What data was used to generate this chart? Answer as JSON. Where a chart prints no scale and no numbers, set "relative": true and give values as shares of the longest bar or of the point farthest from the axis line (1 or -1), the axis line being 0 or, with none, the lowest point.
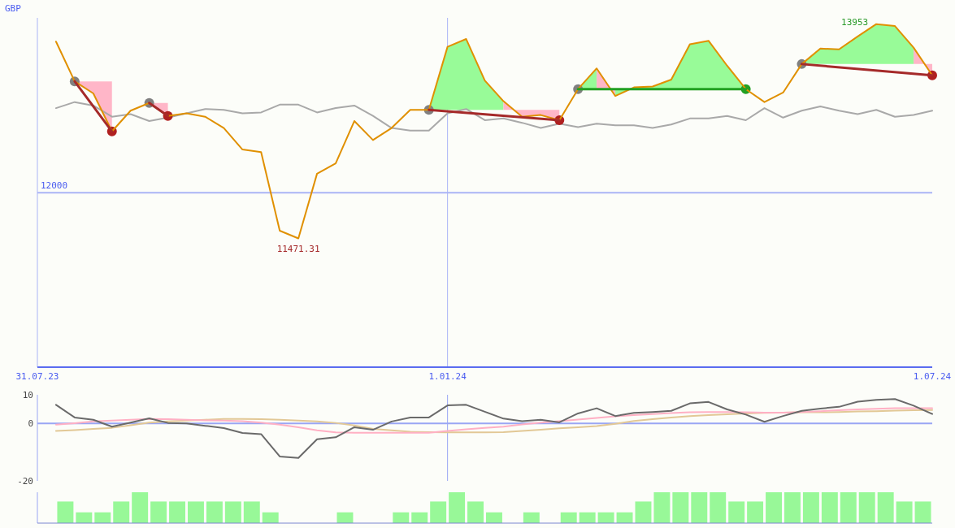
{
  "chart_data": [
    {
      "type": "line",
      "ylabel": "GBP",
      "x": [
        "2023-08-07",
        "2023-08-14",
        "2023-08-21",
        "2023-08-28",
        "2023-09-04",
        "2023-09-11",
        "2023-09-18",
        "2023-09-25",
        "2023-10-02",
        "2023-10-09",
        "2023-10-16",
        "2023-10-23",
        "2023-10-30",
        "2023-11-06",
        "2023-11-13",
        "2023-11-20",
        "2023-11-27",
        "2023-12-04",
        "2023-12-11",
        "2023-12-18",
        "2023-12-25",
        "2024-01-01",
        "2024-01-08",
        "2024-01-15",
        "2024-01-22",
        "2024-01-29",
        "2024-02-05",
        "2024-02-12",
        "2024-02-19",
        "2024-02-26",
        "2024-03-04",
        "2024-03-11",
        "2024-03-18",
        "2024-03-25",
        "2024-04-01",
        "2024-04-08",
        "2024-04-15",
        "2024-04-22",
        "2024-04-29",
        "2024-05-06",
        "2024-05-13",
        "2024-05-20",
        "2024-05-27",
        "2024-06-03",
        "2024-06-10",
        "2024-06-17",
        "2024-06-24",
        "2024-07-01"
      ],
      "xlim": [
        "2023-07-31",
        "2024-07-01"
      ],
      "xticks": [
        {
          "value": "2023-07-31",
          "label": "31.07.23"
        },
        {
          "value": "2024-01-01",
          "label": "1.01.24"
        },
        {
          "value": "2024-07-01",
          "label": "1.07.24"
        }
      ],
      "ylim": [
        9980,
        14025
      ],
      "ref_lines": [
        {
          "axis": "y",
          "value": 12000,
          "label": "12000"
        },
        {
          "axis": "x",
          "value": "2024-01-01"
        }
      ],
      "series": [
        {
          "type": "area",
          "color": "#ffb6c8",
          "x": [
            "2023-08-14",
            "2023-08-21",
            "2023-08-28"
          ],
          "values": [
            null,
            null,
            null
          ],
          "lower": [
            13290,
            13290,
            13290
          ],
          "upper": [
            13290,
            13150,
            12710
          ]
        },
        {
          "type": "area",
          "color": "#ffb6c8",
          "x": [
            "2023-09-11",
            "2023-09-18"
          ],
          "values": [
            null,
            null
          ],
          "lower": [
            13040,
            13040
          ],
          "upper": [
            13040,
            12890
          ]
        },
        {
          "type": "area",
          "color": "#98fb98",
          "x": [
            "2023-12-25",
            "2024-01-01",
            "2024-01-08",
            "2024-01-15",
            "2024-01-22"
          ],
          "values": [
            null,
            null,
            null,
            null,
            null
          ],
          "lower": [
            12960,
            12960,
            12960,
            12960,
            12960
          ],
          "upper": [
            12960,
            13690,
            13780,
            13300,
            13060
          ]
        },
        {
          "type": "area",
          "color": "#ffb6c8",
          "x": [
            "2024-01-22",
            "2024-01-29",
            "2024-02-05",
            "2024-02-12"
          ],
          "values": [
            null,
            null,
            null,
            null
          ],
          "lower": [
            12960,
            12960,
            12960,
            12960
          ],
          "upper": [
            13060,
            12880,
            12900,
            12840
          ]
        },
        {
          "type": "area",
          "color": "#98fb98",
          "x": [
            "2024-02-19",
            "2024-02-26"
          ],
          "values": [
            null,
            null
          ],
          "lower": [
            13200,
            13200
          ],
          "upper": [
            13200,
            13440
          ]
        },
        {
          "type": "area",
          "color": "#ffb6c8",
          "x": [
            "2024-02-26",
            "2024-03-04"
          ],
          "values": [
            null,
            null
          ],
          "lower": [
            13200,
            13200
          ],
          "upper": [
            13440,
            13120
          ]
        },
        {
          "type": "area",
          "color": "#98fb98",
          "x": [
            "2024-03-04",
            "2024-03-11",
            "2024-03-18",
            "2024-03-25",
            "2024-04-01",
            "2024-04-08",
            "2024-04-15",
            "2024-04-22"
          ],
          "values": [
            null,
            null,
            null,
            null,
            null,
            null,
            null,
            null
          ],
          "lower": [
            13200,
            13200,
            13200,
            13200,
            13200,
            13200,
            13200,
            13200
          ],
          "upper": [
            13120,
            13220,
            13230,
            13310,
            13720,
            13760,
            13470,
            13200
          ]
        },
        {
          "type": "area",
          "color": "#98fb98",
          "x": [
            "2024-05-13",
            "2024-05-20",
            "2024-05-27",
            "2024-06-03",
            "2024-06-10",
            "2024-06-17",
            "2024-06-24"
          ],
          "values": [
            null,
            null,
            null,
            null,
            null,
            null,
            null
          ],
          "lower": [
            13490,
            13490,
            13490,
            13490,
            13490,
            13490,
            13490
          ],
          "upper": [
            13490,
            13670,
            13660,
            13810,
            13953,
            13930,
            13680
          ]
        },
        {
          "type": "area",
          "color": "#ffb6c8",
          "x": [
            "2024-06-24",
            "2024-07-01"
          ],
          "values": [
            null,
            null
          ],
          "lower": [
            13490,
            13490
          ],
          "upper": [
            13680,
            13360
          ]
        },
        {
          "color": "#a9a9a9",
          "values": [
            12980,
            13050,
            13010,
            12880,
            12910,
            12830,
            12870,
            12920,
            12970,
            12960,
            12920,
            12930,
            13020,
            13020,
            12930,
            12980,
            13010,
            12890,
            12750,
            12720,
            12720,
            12920,
            12970,
            12840,
            12860,
            12810,
            12750,
            12800,
            12760,
            12800,
            12780,
            12780,
            12750,
            12790,
            12860,
            12860,
            12890,
            12840,
            12980,
            12870,
            12950,
            13000,
            12950,
            12910,
            12960,
            12880,
            12900,
            12950
          ]
        },
        {
          "type": "scatter",
          "marker": "circle",
          "x": [
            "2023-08-14",
            "2023-08-28",
            "2023-09-11",
            "2023-09-18",
            "2023-12-25",
            "2024-02-12",
            "2024-02-19",
            "2024-04-22",
            "2024-05-13",
            "2024-07-01"
          ],
          "values": [
            13290,
            12710,
            13040,
            12890,
            12960,
            12840,
            13200,
            13200,
            13490,
            13360
          ],
          "colors": [
            "#808080",
            "#b02020",
            "#808080",
            "#b02020",
            "#808080",
            "#b02020",
            "#808080",
            "#22a022",
            "#808080",
            "#b02020"
          ]
        },
        {
          "color": "#e09000",
          "values": [
            13750,
            13290,
            13150,
            12710,
            12950,
            13040,
            12890,
            12920,
            12880,
            12750,
            12500,
            12470,
            11560,
            11471.31,
            12220,
            12340,
            12830,
            12610,
            12750,
            12960,
            12960,
            13690,
            13780,
            13300,
            13060,
            12880,
            12900,
            12840,
            13200,
            13440,
            13120,
            13220,
            13230,
            13310,
            13720,
            13760,
            13470,
            13200,
            13050,
            13160,
            13490,
            13670,
            13660,
            13810,
            13953,
            13930,
            13680,
            13360
          ],
          "value_labels": [
            null,
            null,
            null,
            null,
            null,
            null,
            null,
            null,
            null,
            null,
            null,
            null,
            null,
            "11471.31",
            null,
            null,
            null,
            null,
            null,
            null,
            null,
            null,
            null,
            null,
            null,
            null,
            null,
            null,
            null,
            null,
            null,
            null,
            null,
            null,
            null,
            null,
            null,
            null,
            null,
            null,
            null,
            null,
            null,
            null,
            "13953",
            null,
            null,
            null
          ]
        },
        {
          "color": "#a52a2a",
          "x": [
            "2023-08-14",
            "2023-08-28"
          ],
          "values": [
            13290,
            12710
          ]
        },
        {
          "color": "#a52a2a",
          "x": [
            "2023-09-11",
            "2023-09-18"
          ],
          "values": [
            13040,
            12890
          ]
        },
        {
          "color": "#a52a2a",
          "x": [
            "2023-12-25",
            "2024-02-12"
          ],
          "values": [
            12960,
            12840
          ]
        },
        {
          "color": "#22a022",
          "x": [
            "2024-02-19",
            "2024-04-22"
          ],
          "values": [
            13200,
            13200
          ]
        },
        {
          "color": "#a52a2a",
          "x": [
            "2024-05-13",
            "2024-07-01"
          ],
          "values": [
            13490,
            13360
          ]
        }
      ]
    },
    {
      "type": "line",
      "tick_labels": "y",
      "x": [
        "2023-08-07",
        "2023-08-14",
        "2023-08-21",
        "2023-08-28",
        "2023-09-04",
        "2023-09-11",
        "2023-09-18",
        "2023-09-25",
        "2023-10-02",
        "2023-10-09",
        "2023-10-16",
        "2023-10-23",
        "2023-10-30",
        "2023-11-06",
        "2023-11-13",
        "2023-11-20",
        "2023-11-27",
        "2023-12-04",
        "2023-12-11",
        "2023-12-18",
        "2023-12-25",
        "2024-01-01",
        "2024-01-08",
        "2024-01-15",
        "2024-01-22",
        "2024-01-29",
        "2024-02-05",
        "2024-02-12",
        "2024-02-19",
        "2024-02-26",
        "2024-03-04",
        "2024-03-11",
        "2024-03-18",
        "2024-03-25",
        "2024-04-01",
        "2024-04-08",
        "2024-04-15",
        "2024-04-22",
        "2024-04-29",
        "2024-05-06",
        "2024-05-13",
        "2024-05-20",
        "2024-05-27",
        "2024-06-03",
        "2024-06-10",
        "2024-06-17",
        "2024-06-24",
        "2024-07-01"
      ],
      "xlim": [
        "2023-07-31",
        "2024-07-01"
      ],
      "ylim": [
        -20,
        10
      ],
      "yticks": [
        10,
        0,
        -20
      ],
      "ref_lines": [
        {
          "axis": "y",
          "value": 0
        },
        {
          "axis": "x",
          "value": "2024-01-01"
        }
      ],
      "series": [
        {
          "color": "#e2c896",
          "values": [
            -2.6,
            -2.3,
            -1.9,
            -1.5,
            -0.6,
            0.3,
            0.7,
            1.0,
            1.3,
            1.6,
            1.6,
            1.5,
            1.3,
            1.0,
            0.7,
            0.2,
            -0.7,
            -1.9,
            -2.4,
            -2.9,
            -3.0,
            -3.1,
            -3.1,
            -3.1,
            -3.0,
            -2.6,
            -2.2,
            -1.7,
            -1.3,
            -0.9,
            -0.1,
            0.9,
            1.5,
            2.1,
            2.6,
            2.9,
            3.2,
            3.5,
            3.7,
            3.8,
            3.9,
            3.9,
            4.0,
            4.2,
            4.3,
            4.5,
            4.6,
            4.7
          ]
        },
        {
          "color": "#ffb0c4",
          "values": [
            -0.4,
            0.1,
            0.7,
            1.0,
            1.3,
            1.6,
            1.5,
            1.3,
            1.1,
            1.0,
            0.8,
            0.3,
            -0.4,
            -1.3,
            -2.4,
            -3.1,
            -3.2,
            -3.2,
            -3.2,
            -3.2,
            -3.2,
            -2.6,
            -2.0,
            -1.5,
            -1.1,
            -0.3,
            0.3,
            0.8,
            1.4,
            1.9,
            2.5,
            2.9,
            3.3,
            3.6,
            3.9,
            4.0,
            4.0,
            3.9,
            3.8,
            3.8,
            4.0,
            4.3,
            4.6,
            4.9,
            5.1,
            5.3,
            5.3,
            5.3
          ]
        },
        {
          "color": "#6a6a6a",
          "values": [
            6.5,
            2.1,
            1.3,
            -1.1,
            0.3,
            1.8,
            0.2,
            0,
            -0.8,
            -1.6,
            -3.3,
            -3.7,
            -11.5,
            -12,
            -5.5,
            -4.8,
            -1.3,
            -2.2,
            0.7,
            2.1,
            2.1,
            6.3,
            6.5,
            4.1,
            1.7,
            0.8,
            1.3,
            0.4,
            3.5,
            5.3,
            2.6,
            3.7,
            4.0,
            4.4,
            7.0,
            7.5,
            4.9,
            3.1,
            0.6,
            2.6,
            4.4,
            5.2,
            5.8,
            7.6,
            8.2,
            8.5,
            6.2,
            3.3
          ]
        }
      ]
    },
    {
      "type": "bar",
      "relative": true,
      "color": "#98f898",
      "tick_labels": false,
      "xlim": [
        "2023-07-31",
        "2024-07-01"
      ],
      "x": [
        "2023-08-10T12:00",
        "2023-08-17T12:00",
        "2023-08-24T12:00",
        "2023-08-31T12:00",
        "2023-09-07T12:00",
        "2023-09-14T12:00",
        "2023-09-21T12:00",
        "2023-09-28T12:00",
        "2023-10-05T12:00",
        "2023-10-12T12:00",
        "2023-10-19T12:00",
        "2023-10-26T12:00",
        "2023-11-02T12:00",
        "2023-11-09T12:00",
        "2023-11-16T12:00",
        "2023-11-23T12:00",
        "2023-11-30T12:00",
        "2023-12-07T12:00",
        "2023-12-14T12:00",
        "2023-12-21T12:00",
        "2023-12-28T12:00",
        "2024-01-04T12:00",
        "2024-01-11T12:00",
        "2024-01-18T12:00",
        "2024-01-25T12:00",
        "2024-02-01T12:00",
        "2024-02-08T12:00",
        "2024-02-15T12:00",
        "2024-02-22T12:00",
        "2024-02-29T12:00",
        "2024-03-07T12:00",
        "2024-03-14T12:00",
        "2024-03-21T12:00",
        "2024-03-28T12:00",
        "2024-04-04T12:00",
        "2024-04-11T12:00",
        "2024-04-18T12:00",
        "2024-04-25T12:00",
        "2024-05-02T12:00",
        "2024-05-09T12:00",
        "2024-05-16T12:00",
        "2024-05-23T12:00",
        "2024-05-30T12:00",
        "2024-06-06T12:00",
        "2024-06-13T12:00",
        "2024-06-20T12:00",
        "2024-06-27T12:00"
      ],
      "values": [
        0.7,
        0.35,
        0.35,
        0.7,
        1,
        0.7,
        0.7,
        0.7,
        0.7,
        0.7,
        0.7,
        0.35,
        null,
        null,
        null,
        0.35,
        null,
        null,
        0.35,
        0.35,
        0.7,
        1,
        0.7,
        0.35,
        null,
        0.35,
        null,
        0.35,
        0.35,
        0.35,
        0.35,
        0.7,
        1,
        1,
        1,
        1,
        0.7,
        0.7,
        1,
        1,
        1,
        1,
        1,
        1,
        1,
        0.7,
        0.7
      ]
    }
  ]
}
